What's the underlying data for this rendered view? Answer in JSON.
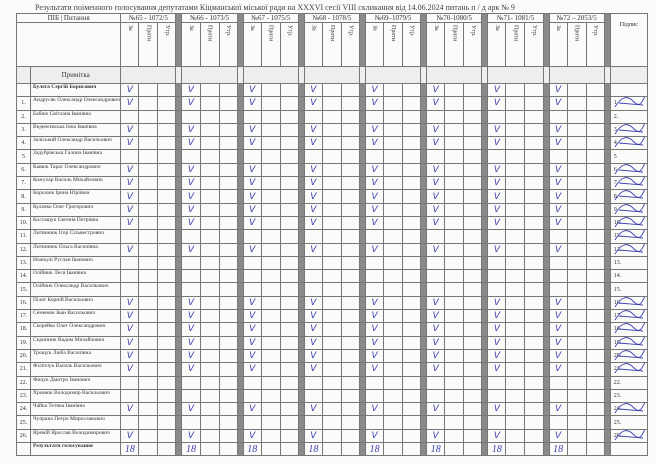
{
  "title": "Результати поіменного голосування  депутатами Кіцманської міської ради на XXXVI сесії VIII скликання  від  14.06.2024  питань   п / д  арк № 9",
  "header": {
    "pib": "ПІБ",
    "pytannia": "Питання",
    "signature": "Підпис",
    "note": "Примітка",
    "sub": [
      "За",
      "Проти",
      "Утр."
    ]
  },
  "questions": [
    "№65 - 1072/5",
    "№66 - 1073/5",
    "№67 - 1075/5",
    "№68 - 1078/5",
    "№69–1079/5",
    "№70-1080/5",
    "№71- 1081/5",
    "№72 – 2053/5"
  ],
  "chair": {
    "name": "Булега Сергій Борисович",
    "voted_for": true
  },
  "rows": [
    {
      "num": "1.",
      "name": "Андрусяк Олександр Олександрович",
      "voted_for": true,
      "signed": true
    },
    {
      "num": "2.",
      "name": "Бабюк Світлана Іванівна",
      "voted_for": false,
      "signed": false
    },
    {
      "num": "3.",
      "name": "Веденєєвська Інна Іванівна",
      "voted_for": true,
      "signed": true
    },
    {
      "num": "4.",
      "name": "Заліський Олександр Васильович",
      "voted_for": true,
      "signed": true
    },
    {
      "num": "5",
      "name": "Задубрівська Галина Іванівна",
      "voted_for": false,
      "signed": false
    },
    {
      "num": "6.",
      "name": "Кавюк Тарас Олександрович",
      "voted_for": true,
      "signed": true
    },
    {
      "num": "7.",
      "name": "Кожухар Василь Михайлович",
      "voted_for": true,
      "signed": true
    },
    {
      "num": "8.",
      "name": "Королюк Ірина Юріївна",
      "voted_for": true,
      "signed": true
    },
    {
      "num": "9.",
      "name": "Кулачко Олег Григорович",
      "voted_for": true,
      "signed": true
    },
    {
      "num": "10.",
      "name": "Костащук Євгенія Петрівна",
      "voted_for": true,
      "signed": true
    },
    {
      "num": "11.",
      "name": "Литвинюк Ігор Сільвестрович",
      "voted_for": false,
      "signed": true
    },
    {
      "num": "12.",
      "name": "Литвинюк Ольга Василівна",
      "voted_for": true,
      "signed": true
    },
    {
      "num": "13.",
      "name": "Ножкулі Руслан Іванович",
      "voted_for": false,
      "signed": false
    },
    {
      "num": "14.",
      "name": "Олійник Леся Іванівна",
      "voted_for": false,
      "signed": false
    },
    {
      "num": "15.",
      "name": "Олійник Олександр Васильович",
      "voted_for": false,
      "signed": false
    },
    {
      "num": "16.",
      "name": "Пілат Корній Васильович",
      "voted_for": true,
      "signed": true
    },
    {
      "num": "17.",
      "name": "Семенюк Іван Васильович",
      "voted_for": true,
      "signed": true
    },
    {
      "num": "18.",
      "name": "Скорейко Олег Олександрович",
      "voted_for": true,
      "signed": true
    },
    {
      "num": "19.",
      "name": "Скрипник Вадим Михайлович",
      "voted_for": true,
      "signed": true
    },
    {
      "num": "20.",
      "name": "Трощук Люба Василівна",
      "voted_for": true,
      "signed": true
    },
    {
      "num": "21.",
      "name": "Філіпчук Василь Васильович",
      "voted_for": true,
      "signed": true
    },
    {
      "num": "22.",
      "name": "Фицук Дмитро Іванович",
      "voted_for": false,
      "signed": false
    },
    {
      "num": "23.",
      "name": "Хромюк Володимир Васильович",
      "voted_for": false,
      "signed": false
    },
    {
      "num": "24.",
      "name": "Чайка Тетяна Іванівна",
      "voted_for": true,
      "signed": true
    },
    {
      "num": "25.",
      "name": "Чупрана Петро Мирославович",
      "voted_for": false,
      "signed": false
    },
    {
      "num": "26.",
      "name": "Яремій Ярослав Володимирович",
      "voted_for": true,
      "signed": true
    }
  ],
  "vote_mark": "V",
  "results_label": "Результати голосування",
  "results": [
    "18",
    "18",
    "18",
    "18",
    "18",
    "18",
    "18",
    "18"
  ],
  "ink_color": "#3b3fb0"
}
